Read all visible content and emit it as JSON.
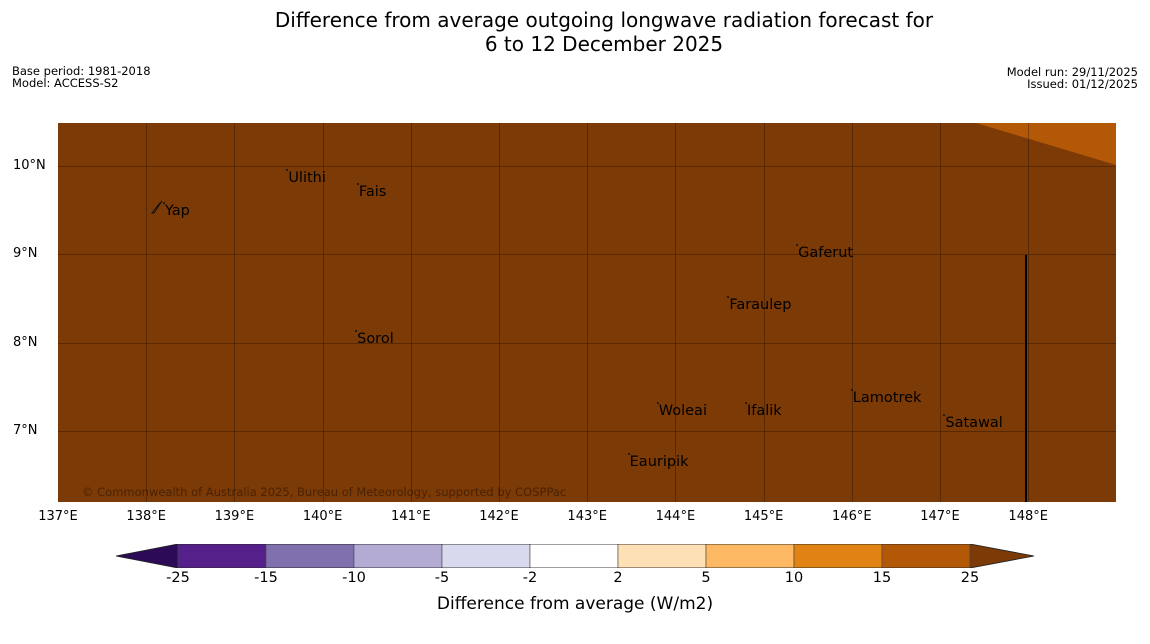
{
  "title": {
    "line1": "Difference from average outgoing longwave radiation forecast for",
    "line2": "6 to 12 December 2025"
  },
  "info_left": {
    "base_period": "Base period: 1981-2018",
    "model": "Model: ACCESS-S2"
  },
  "info_right": {
    "model_run": "Model run: 29/11/2025",
    "issued": "Issued: 01/12/2025"
  },
  "map": {
    "extent": {
      "lon_min": 137.0,
      "lon_max": 149.0,
      "lat_min": 6.2,
      "lat_max": 10.5
    },
    "background_color": "#7c3a06",
    "lon_ticks": [
      "137°E",
      "138°E",
      "139°E",
      "140°E",
      "141°E",
      "142°E",
      "143°E",
      "144°E",
      "145°E",
      "146°E",
      "147°E",
      "148°E"
    ],
    "lat_ticks": [
      "10°N",
      "9°N",
      "8°N",
      "7°N"
    ],
    "places": [
      {
        "name": "Yap",
        "lon": 138.2,
        "lat": 9.5
      },
      {
        "name": "Ulithi",
        "lon": 139.6,
        "lat": 9.88
      },
      {
        "name": "Fais",
        "lon": 140.4,
        "lat": 9.72
      },
      {
        "name": "Gaferut",
        "lon": 145.38,
        "lat": 9.03
      },
      {
        "name": "Faraulep",
        "lon": 144.6,
        "lat": 8.44
      },
      {
        "name": "Sorol",
        "lon": 140.38,
        "lat": 8.05
      },
      {
        "name": "Lamotrek",
        "lon": 146.0,
        "lat": 7.38
      },
      {
        "name": "Woleai",
        "lon": 143.8,
        "lat": 7.24
      },
      {
        "name": "Ifalik",
        "lon": 144.8,
        "lat": 7.24
      },
      {
        "name": "Satawal",
        "lon": 147.05,
        "lat": 7.1
      },
      {
        "name": "Eauripik",
        "lon": 143.47,
        "lat": 6.66
      }
    ],
    "copyright": "© Commonwealth of Australia 2025, Bureau of Meteorology, supported by COSPPac"
  },
  "colorbar": {
    "title": "Difference from average (W/m2)",
    "labels": [
      "-25",
      "-15",
      "-10",
      "-5",
      "-2",
      "2",
      "5",
      "10",
      "15",
      "25"
    ],
    "colors": [
      "#2d0a55",
      "#55208a",
      "#8070ad",
      "#b3abd3",
      "#d8d9ec",
      "#ffffff",
      "#fee0b6",
      "#fdb863",
      "#e08214",
      "#b35806",
      "#7c3a06"
    ]
  }
}
